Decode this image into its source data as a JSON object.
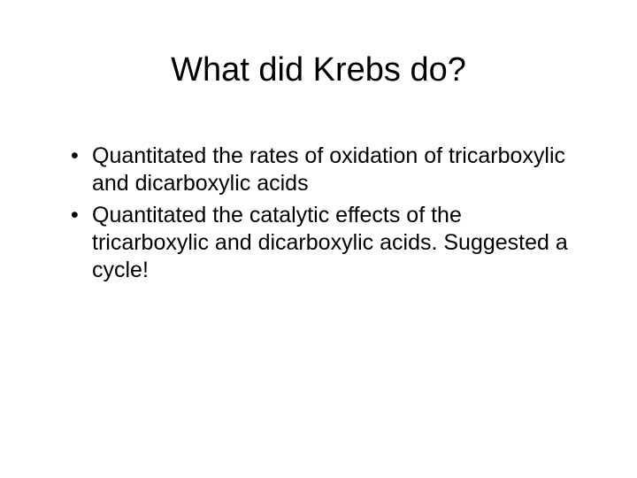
{
  "slide": {
    "title": "What did Krebs do?",
    "title_fontsize": 38,
    "title_align": "center",
    "background_color": "#ffffff",
    "text_color": "#000000",
    "bullets": [
      "Quantitated the rates of oxidation of tricarboxylic and dicarboxylic acids",
      "Quantitated the catalytic effects of the tricarboxylic and dicarboxylic acids. Suggested a cycle!"
    ],
    "bullet_fontsize": 25,
    "font_family": "Arial"
  }
}
